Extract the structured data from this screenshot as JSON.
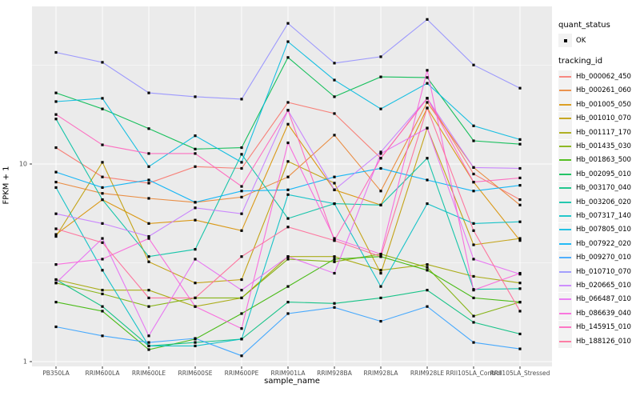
{
  "figure": {
    "legend": {
      "quant_status": {
        "title": "quant_status",
        "items": [
          {
            "label": "OK",
            "marker": "black-point"
          }
        ]
      },
      "tracking_id": {
        "title": "tracking_id"
      }
    },
    "panel_color": "#EBEBEB",
    "grid_color": "#FFFFFF",
    "tick_text_color": "#4D4D4D",
    "point_color": "#000000"
  },
  "chart_data": {
    "type": "line",
    "title": "",
    "xlabel": "sample_name",
    "ylabel": "FPKM + 1",
    "yscale": "log10",
    "ylim": [
      1,
      60
    ],
    "grid": true,
    "legend_position": "right",
    "point_marker": "small-black-square",
    "x": [
      "PB350LA",
      "RRIM600LA",
      "RRIM600LE",
      "RRIM600SE",
      "RRIM600PE",
      "RRIM901LA",
      "RRIM928BA",
      "RRIM928LA",
      "RRIM928LE",
      "RRII105LA_Control",
      "RRII105LA_Stressed"
    ],
    "y_ticks": [
      {
        "label": "1",
        "value": 1
      },
      {
        "label": "10",
        "value": 10
      }
    ],
    "y_minor": [
      3.1623,
      31.6228
    ],
    "series": [
      {
        "name": "Hb_000062_450",
        "color": "#F8766D",
        "values": [
          12.1,
          8.6,
          8.0,
          9.7,
          9.5,
          20.5,
          18.0,
          10.7,
          21.5,
          8.9,
          6.6
        ]
      },
      {
        "name": "Hb_000261_060",
        "color": "#EA8331",
        "values": [
          8.1,
          7.1,
          6.7,
          6.4,
          6.8,
          8.6,
          14.0,
          7.3,
          20.5,
          9.6,
          6.2
        ]
      },
      {
        "name": "Hb_001005_050",
        "color": "#D89000",
        "values": [
          4.4,
          6.6,
          5.0,
          5.2,
          4.6,
          15.9,
          7.4,
          6.2,
          19.2,
          8.1,
          4.1
        ]
      },
      {
        "name": "Hb_001010_070",
        "color": "#C09B00",
        "values": [
          4.3,
          10.2,
          3.2,
          2.5,
          2.6,
          10.3,
          8.0,
          2.8,
          15.2,
          3.9,
          4.2
        ]
      },
      {
        "name": "Hb_001117_170",
        "color": "#A3A500",
        "values": [
          2.6,
          2.3,
          2.3,
          1.9,
          2.1,
          3.4,
          3.4,
          2.9,
          3.1,
          2.7,
          2.5
        ]
      },
      {
        "name": "Hb_001435_030",
        "color": "#7CAE00",
        "values": [
          2.5,
          2.2,
          1.9,
          2.1,
          2.1,
          3.3,
          3.2,
          3.5,
          3.0,
          1.7,
          2.0
        ]
      },
      {
        "name": "Hb_001863_500",
        "color": "#39B600",
        "values": [
          2.0,
          1.8,
          1.15,
          1.3,
          1.75,
          2.4,
          3.3,
          3.4,
          2.9,
          2.1,
          2.0
        ]
      },
      {
        "name": "Hb_002095_010",
        "color": "#00BB4E",
        "values": [
          22.9,
          19.0,
          15.1,
          11.9,
          12.1,
          34.6,
          21.9,
          27.6,
          27.4,
          13.1,
          12.6
        ]
      },
      {
        "name": "Hb_003170_040",
        "color": "#00BF7D",
        "values": [
          2.6,
          1.9,
          1.2,
          1.25,
          1.3,
          2.0,
          1.97,
          2.1,
          2.3,
          1.58,
          1.38
        ]
      },
      {
        "name": "Hb_003206_020",
        "color": "#00C1A3",
        "values": [
          16.9,
          6.6,
          3.4,
          3.7,
          11.2,
          5.3,
          6.3,
          6.2,
          10.7,
          2.32,
          2.34
        ]
      },
      {
        "name": "Hb_007317_140",
        "color": "#00BFC4",
        "values": [
          7.6,
          2.9,
          1.2,
          1.2,
          1.3,
          7.0,
          6.3,
          2.4,
          6.3,
          5.0,
          5.1
        ]
      },
      {
        "name": "Hb_007805_010",
        "color": "#00BAE0",
        "values": [
          20.7,
          21.5,
          9.7,
          13.9,
          10.2,
          41.6,
          26.6,
          19.0,
          25.6,
          15.6,
          13.3
        ]
      },
      {
        "name": "Hb_007922_020",
        "color": "#00B0F6",
        "values": [
          9.1,
          7.6,
          8.3,
          6.4,
          7.3,
          7.4,
          8.6,
          9.5,
          8.3,
          7.3,
          7.8
        ]
      },
      {
        "name": "Hb_009270_010",
        "color": "#35A2FF",
        "values": [
          1.5,
          1.35,
          1.25,
          1.31,
          1.07,
          1.75,
          1.88,
          1.6,
          1.9,
          1.25,
          1.16
        ]
      },
      {
        "name": "Hb_010710_070",
        "color": "#9590FF",
        "values": [
          36.7,
          32.7,
          22.9,
          21.9,
          21.3,
          51.5,
          32.4,
          34.9,
          53.9,
          31.7,
          24.2
        ]
      },
      {
        "name": "Hb_020665_010",
        "color": "#C77CFF",
        "values": [
          5.6,
          5.0,
          4.3,
          6.0,
          5.6,
          18.7,
          7.4,
          11.5,
          21.5,
          9.6,
          9.5
        ]
      },
      {
        "name": "Hb_066487_010",
        "color": "#E76BF3",
        "values": [
          2.5,
          4.2,
          1.35,
          3.3,
          2.3,
          3.4,
          2.8,
          11.3,
          15.2,
          3.3,
          2.77
        ]
      },
      {
        "name": "Hb_086639_040",
        "color": "#FA62DB",
        "values": [
          3.1,
          3.3,
          4.2,
          1.9,
          1.47,
          12.8,
          4.2,
          3.5,
          29.8,
          2.3,
          2.8
        ]
      },
      {
        "name": "Hb_145915_010",
        "color": "#FF62BC",
        "values": [
          17.8,
          12.5,
          11.3,
          11.3,
          7.7,
          18.7,
          4.1,
          10.7,
          21.5,
          8.1,
          8.5
        ]
      },
      {
        "name": "Hb_188126_010",
        "color": "#FF6A98",
        "values": [
          4.7,
          4.0,
          2.1,
          2.1,
          3.4,
          4.8,
          4.1,
          3.4,
          19.2,
          4.6,
          1.8
        ]
      }
    ]
  }
}
